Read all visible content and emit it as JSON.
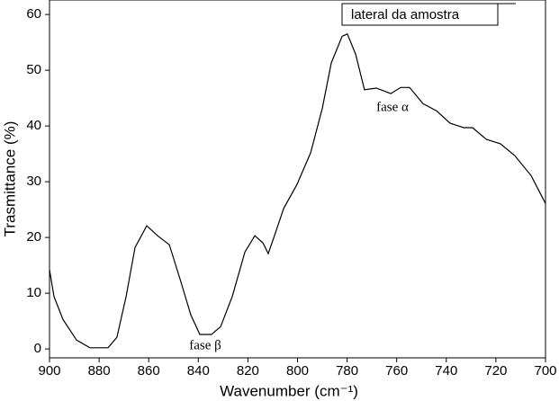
{
  "chart_data": {
    "type": "line",
    "x_label": "Wavenumber (cm⁻¹)",
    "y_label": "Trasmittance (%)",
    "x": [
      900,
      898.2,
      894.6,
      889.1,
      883.7,
      876.4,
      872.8,
      869.1,
      865.5,
      860.8,
      856.4,
      851.7,
      847.4,
      843.0,
      839.4,
      834.7,
      831.0,
      826.3,
      821.2,
      817.2,
      813.9,
      811.8,
      809.3,
      805.6,
      800.2,
      794.7,
      790.0,
      786.4,
      782.0,
      779.9,
      776.6,
      773.0,
      768.2,
      762.4,
      758.4,
      754.8,
      749.4,
      743.9,
      738.5,
      733.0,
      729.4,
      723.9,
      718.2,
      712.4,
      705.8,
      700
    ],
    "series": [
      {
        "name": "lateral da amostra",
        "color": "#000000",
        "values": [
          14.2,
          9.4,
          5.3,
          1.6,
          0.2,
          0.2,
          2.1,
          9.4,
          18.2,
          22.1,
          20.3,
          18.7,
          12.6,
          6.1,
          2.6,
          2.6,
          4.0,
          9.4,
          17.4,
          20.3,
          19.0,
          17.1,
          20.3,
          25.2,
          29.5,
          35.2,
          43.2,
          51.3,
          56.1,
          56.5,
          52.9,
          46.5,
          46.8,
          45.8,
          46.9,
          46.9,
          44.0,
          42.7,
          40.5,
          39.7,
          39.7,
          37.6,
          36.8,
          34.7,
          31.1,
          26.1
        ]
      }
    ],
    "annotations": [
      "fase α",
      "fase β"
    ],
    "xlim": [
      900,
      700
    ],
    "ylim": [
      -1.6,
      62.6
    ],
    "xticks": [
      900,
      880,
      860,
      840,
      820,
      800,
      780,
      760,
      740,
      720,
      700
    ],
    "yticks": [
      0,
      10,
      20,
      30,
      40,
      50,
      60
    ]
  }
}
